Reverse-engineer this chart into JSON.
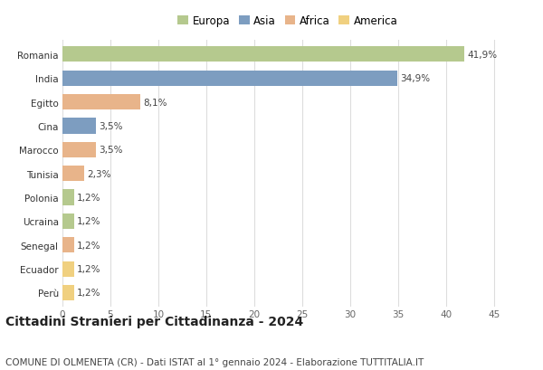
{
  "countries": [
    "Romania",
    "India",
    "Egitto",
    "Cina",
    "Marocco",
    "Tunisia",
    "Polonia",
    "Ucraina",
    "Senegal",
    "Ecuador",
    "Perù"
  ],
  "values": [
    41.9,
    34.9,
    8.1,
    3.5,
    3.5,
    2.3,
    1.2,
    1.2,
    1.2,
    1.2,
    1.2
  ],
  "labels": [
    "41,9%",
    "34,9%",
    "8,1%",
    "3,5%",
    "3,5%",
    "2,3%",
    "1,2%",
    "1,2%",
    "1,2%",
    "1,2%",
    "1,2%"
  ],
  "continents": [
    "Europa",
    "Asia",
    "Africa",
    "Asia",
    "Africa",
    "Africa",
    "Europa",
    "Europa",
    "Africa",
    "America",
    "America"
  ],
  "colors": {
    "Europa": "#b5c98e",
    "Asia": "#7d9dc0",
    "Africa": "#e8b48a",
    "America": "#f0d080"
  },
  "legend_order": [
    "Europa",
    "Asia",
    "Africa",
    "America"
  ],
  "title": "Cittadini Stranieri per Cittadinanza - 2024",
  "subtitle": "COMUNE DI OLMENETA (CR) - Dati ISTAT al 1° gennaio 2024 - Elaborazione TUTTITALIA.IT",
  "xlim": [
    0,
    47
  ],
  "xticks": [
    0,
    5,
    10,
    15,
    20,
    25,
    30,
    35,
    40,
    45
  ],
  "bg_color": "#ffffff",
  "grid_color": "#dddddd",
  "bar_height": 0.65,
  "label_fontsize": 7.5,
  "tick_fontsize": 7.5,
  "legend_fontsize": 8.5,
  "title_fontsize": 10,
  "subtitle_fontsize": 7.5
}
